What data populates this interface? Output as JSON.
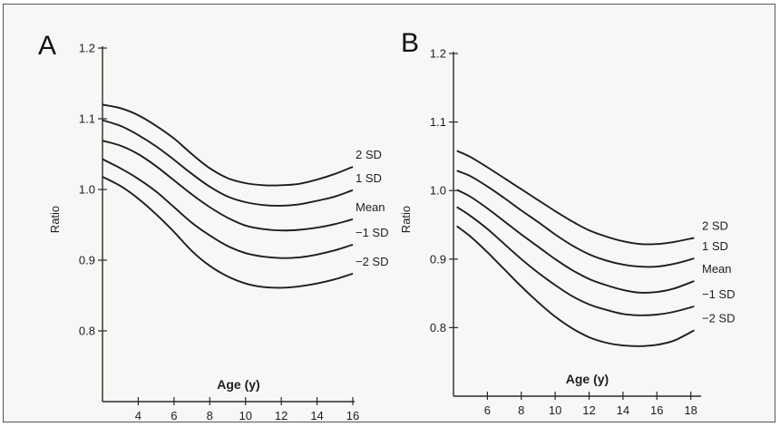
{
  "chart_data": [
    {
      "type": "line",
      "panel_label": "A",
      "xlabel": "Age (y)",
      "ylabel": "Ratio",
      "xlim": [
        2,
        16
      ],
      "ylim": [
        0.7,
        1.2
      ],
      "x_ticks": [
        "4",
        "6",
        "8",
        "10",
        "12",
        "14",
        "16"
      ],
      "y_ticks": [
        "0.8",
        "0.9",
        "1.0",
        "1.1",
        "1.2"
      ],
      "x": [
        2,
        3,
        4,
        5,
        6,
        7,
        8,
        9,
        10,
        11,
        12,
        13,
        14,
        15,
        16
      ],
      "series": [
        {
          "name": "2 SD",
          "values": [
            1.12,
            1.115,
            1.105,
            1.09,
            1.072,
            1.05,
            1.03,
            1.016,
            1.009,
            1.006,
            1.006,
            1.008,
            1.014,
            1.022,
            1.032
          ]
        },
        {
          "name": "1 SD",
          "values": [
            1.098,
            1.09,
            1.077,
            1.061,
            1.042,
            1.022,
            1.004,
            0.99,
            0.982,
            0.978,
            0.977,
            0.979,
            0.984,
            0.99,
            0.999
          ]
        },
        {
          "name": "Mean",
          "values": [
            1.069,
            1.062,
            1.05,
            1.033,
            1.013,
            0.993,
            0.975,
            0.96,
            0.949,
            0.944,
            0.942,
            0.943,
            0.946,
            0.951,
            0.958
          ]
        },
        {
          "name": "−1 SD",
          "values": [
            1.043,
            1.03,
            1.015,
            0.997,
            0.975,
            0.953,
            0.935,
            0.92,
            0.91,
            0.905,
            0.903,
            0.904,
            0.908,
            0.914,
            0.922
          ]
        },
        {
          "name": "−2 SD",
          "values": [
            1.018,
            1.005,
            0.987,
            0.965,
            0.94,
            0.913,
            0.892,
            0.877,
            0.867,
            0.862,
            0.861,
            0.863,
            0.867,
            0.873,
            0.881
          ]
        }
      ]
    },
    {
      "type": "line",
      "panel_label": "B",
      "xlabel": "Age (y)",
      "ylabel": "Ratio",
      "xlim": [
        4,
        18.5
      ],
      "ylim": [
        0.7,
        1.2
      ],
      "x_ticks": [
        "6",
        "8",
        "10",
        "12",
        "14",
        "16",
        "18"
      ],
      "y_ticks": [
        "0.8",
        "0.9",
        "1.0",
        "1.1",
        "1.2"
      ],
      "x": [
        4.2,
        5,
        6,
        7,
        8,
        9,
        10,
        11,
        12,
        13,
        14,
        15,
        16,
        17,
        18.2
      ],
      "series": [
        {
          "name": "2 SD",
          "values": [
            1.058,
            1.049,
            1.034,
            1.018,
            1.002,
            0.986,
            0.97,
            0.955,
            0.942,
            0.933,
            0.926,
            0.922,
            0.922,
            0.925,
            0.931
          ]
        },
        {
          "name": "1 SD",
          "values": [
            1.029,
            1.021,
            1.006,
            0.989,
            0.971,
            0.954,
            0.936,
            0.92,
            0.907,
            0.898,
            0.892,
            0.889,
            0.889,
            0.893,
            0.901
          ]
        },
        {
          "name": "Mean",
          "values": [
            1.001,
            0.991,
            0.974,
            0.955,
            0.936,
            0.918,
            0.9,
            0.884,
            0.871,
            0.862,
            0.855,
            0.851,
            0.852,
            0.857,
            0.868
          ]
        },
        {
          "name": "−1 SD",
          "values": [
            0.976,
            0.963,
            0.944,
            0.922,
            0.9,
            0.88,
            0.862,
            0.846,
            0.834,
            0.826,
            0.82,
            0.818,
            0.819,
            0.823,
            0.831
          ]
        },
        {
          "name": "−2 SD",
          "values": [
            0.948,
            0.933,
            0.91,
            0.885,
            0.86,
            0.837,
            0.816,
            0.799,
            0.786,
            0.778,
            0.774,
            0.773,
            0.775,
            0.781,
            0.796
          ]
        }
      ]
    }
  ]
}
